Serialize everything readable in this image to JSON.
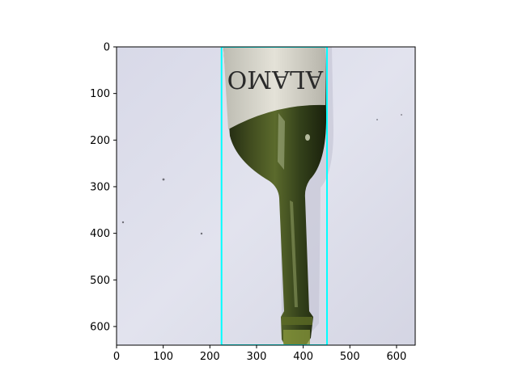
{
  "chart_data": {
    "type": "image",
    "image_size": [
      640,
      640
    ],
    "xlim": [
      0,
      640
    ],
    "ylim": [
      640,
      0
    ],
    "xticks": [
      0,
      100,
      200,
      300,
      400,
      500,
      600
    ],
    "yticks": [
      0,
      100,
      200,
      300,
      400,
      500,
      600
    ],
    "image_content": {
      "subject": "green glass wine bottle, neck pointing down",
      "background_color": "#dcdde8",
      "label_text": "ALAMO"
    },
    "annotations": [
      {
        "type": "bounding_box",
        "color": "#00ffff",
        "x": [
          225,
          451
        ],
        "y": [
          0,
          640
        ]
      }
    ]
  }
}
